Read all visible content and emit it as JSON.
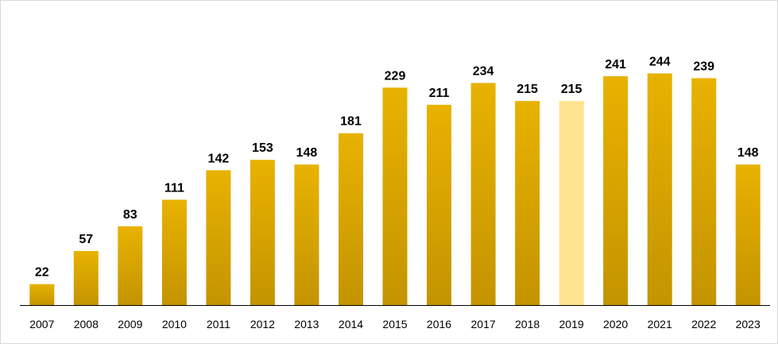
{
  "chart_data": {
    "type": "bar",
    "categories": [
      "2007",
      "2008",
      "2009",
      "2010",
      "2011",
      "2012",
      "2013",
      "2014",
      "2015",
      "2016",
      "2017",
      "2018",
      "2019",
      "2020",
      "2021",
      "2022",
      "2023"
    ],
    "values": [
      22,
      57,
      83,
      111,
      142,
      153,
      148,
      181,
      229,
      211,
      234,
      215,
      215,
      241,
      244,
      239,
      148
    ],
    "data_labels": [
      "22",
      "57",
      "83",
      "111",
      "142",
      "153",
      "148",
      "181",
      "229",
      "211",
      "234",
      "215",
      "215",
      "241",
      "244",
      "239",
      "148"
    ],
    "ylim": [
      0,
      270
    ],
    "grid": false,
    "legend": "none",
    "highlight_category": "2019",
    "colors": {
      "bar_top": "#E8B200",
      "bar_bottom": "#C49400",
      "highlight": "#FFE38E",
      "axis": "#000000"
    }
  }
}
